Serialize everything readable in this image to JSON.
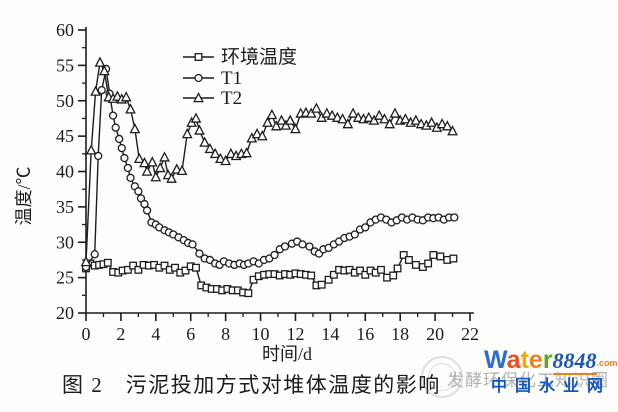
{
  "figure": {
    "caption": "图 2　污泥投加方式对堆体温度的影响"
  },
  "watermarks": {
    "faint_text": "发酵环保化工知识圈",
    "faint_text_color": "#808080",
    "logo_word_letters": [
      {
        "ch": "W",
        "color": "#2b6bd3"
      },
      {
        "ch": "a",
        "color": "#e94e1b"
      },
      {
        "ch": "t",
        "color": "#f5a800"
      },
      {
        "ch": "e",
        "color": "#e8821a"
      },
      {
        "ch": "r",
        "color": "#5fa822"
      }
    ],
    "logo_number": "8848",
    "logo_number_color": "#1f55b0",
    "logo_domain_suffix": ".com",
    "logo_domain_suffix_color": "#e8821a",
    "site_name": "中国水业网",
    "site_name_color": "#1456c0"
  },
  "chart_data": {
    "type": "line",
    "title": "",
    "xlabel": "时间/d",
    "ylabel": "温度/℃",
    "xlim": [
      0,
      22
    ],
    "ylim": [
      20,
      60
    ],
    "x_major_ticks": [
      0,
      2,
      4,
      6,
      8,
      10,
      12,
      14,
      16,
      18,
      20,
      22
    ],
    "x_minor_step": 1,
    "y_major_ticks": [
      20,
      25,
      30,
      35,
      40,
      45,
      50,
      55,
      60
    ],
    "y_minor_step": 2.5,
    "grid": false,
    "legend_position": "inside-upper-left",
    "line_color": "#1d1d1d",
    "series": [
      {
        "name": "环境温度",
        "marker": "square",
        "points": [
          [
            0,
            26.3
          ],
          [
            0.25,
            27.0
          ],
          [
            0.5,
            26.7
          ],
          [
            0.75,
            26.8
          ],
          [
            1.0,
            26.9
          ],
          [
            1.25,
            27.1
          ],
          [
            1.55,
            25.8
          ],
          [
            1.85,
            25.7
          ],
          [
            2.1,
            26.0
          ],
          [
            2.4,
            26.1
          ],
          [
            2.7,
            26.7
          ],
          [
            3.0,
            26.1
          ],
          [
            3.3,
            26.8
          ],
          [
            3.6,
            26.7
          ],
          [
            3.9,
            26.8
          ],
          [
            4.2,
            26.4
          ],
          [
            4.5,
            26.7
          ],
          [
            4.8,
            26.1
          ],
          [
            5.1,
            26.4
          ],
          [
            5.4,
            25.7
          ],
          [
            5.7,
            26.0
          ],
          [
            6.0,
            26.6
          ],
          [
            6.3,
            26.4
          ],
          [
            6.6,
            23.9
          ],
          [
            6.9,
            23.6
          ],
          [
            7.2,
            23.4
          ],
          [
            7.5,
            23.4
          ],
          [
            7.8,
            23.2
          ],
          [
            8.1,
            23.4
          ],
          [
            8.4,
            23.2
          ],
          [
            8.7,
            23.2
          ],
          [
            9.0,
            22.9
          ],
          [
            9.3,
            22.8
          ],
          [
            9.6,
            24.7
          ],
          [
            9.9,
            25.2
          ],
          [
            10.2,
            25.4
          ],
          [
            10.5,
            25.5
          ],
          [
            10.8,
            25.5
          ],
          [
            11.1,
            25.3
          ],
          [
            11.4,
            25.5
          ],
          [
            11.7,
            25.4
          ],
          [
            12.0,
            25.6
          ],
          [
            12.3,
            25.5
          ],
          [
            12.6,
            25.4
          ],
          [
            12.9,
            25.3
          ],
          [
            13.2,
            23.9
          ],
          [
            13.5,
            24.0
          ],
          [
            13.9,
            24.7
          ],
          [
            14.2,
            25.4
          ],
          [
            14.5,
            26.1
          ],
          [
            14.8,
            26.0
          ],
          [
            15.1,
            26.1
          ],
          [
            15.4,
            25.7
          ],
          [
            15.7,
            26.0
          ],
          [
            16.0,
            25.4
          ],
          [
            16.3,
            26.0
          ],
          [
            16.6,
            25.7
          ],
          [
            16.9,
            26.1
          ],
          [
            17.25,
            25.0
          ],
          [
            17.6,
            25.3
          ],
          [
            17.85,
            26.3
          ],
          [
            18.2,
            28.2
          ],
          [
            18.5,
            27.5
          ],
          [
            18.9,
            26.8
          ],
          [
            19.3,
            26.5
          ],
          [
            19.6,
            27.0
          ],
          [
            19.9,
            28.2
          ],
          [
            20.3,
            28.0
          ],
          [
            20.7,
            27.5
          ],
          [
            21.05,
            27.7
          ]
        ]
      },
      {
        "name": "T1",
        "marker": "circle",
        "points": [
          [
            0,
            26.5
          ],
          [
            0.5,
            28.3
          ],
          [
            0.7,
            42.2
          ],
          [
            0.9,
            51.5
          ],
          [
            1.15,
            54.5
          ],
          [
            1.35,
            51.0
          ],
          [
            1.55,
            47.9
          ],
          [
            1.7,
            46.2
          ],
          [
            1.9,
            44.6
          ],
          [
            2.05,
            43.3
          ],
          [
            2.2,
            41.9
          ],
          [
            2.4,
            40.5
          ],
          [
            2.55,
            39.1
          ],
          [
            2.8,
            37.9
          ],
          [
            3.0,
            37.2
          ],
          [
            3.15,
            36.2
          ],
          [
            3.35,
            35.4
          ],
          [
            3.5,
            34.5
          ],
          [
            3.75,
            32.8
          ],
          [
            4.0,
            32.5
          ],
          [
            4.2,
            32.1
          ],
          [
            4.5,
            31.7
          ],
          [
            4.75,
            31.4
          ],
          [
            5.0,
            31.1
          ],
          [
            5.3,
            30.7
          ],
          [
            5.6,
            30.3
          ],
          [
            5.85,
            29.9
          ],
          [
            6.1,
            29.7
          ],
          [
            6.5,
            28.4
          ],
          [
            6.8,
            27.7
          ],
          [
            7.1,
            27.5
          ],
          [
            7.4,
            27.0
          ],
          [
            7.65,
            26.8
          ],
          [
            7.9,
            27.3
          ],
          [
            8.2,
            27.0
          ],
          [
            8.5,
            26.8
          ],
          [
            8.8,
            27.0
          ],
          [
            9.05,
            26.8
          ],
          [
            9.3,
            27.0
          ],
          [
            9.6,
            27.3
          ],
          [
            9.9,
            27.0
          ],
          [
            10.2,
            27.5
          ],
          [
            10.5,
            27.7
          ],
          [
            10.8,
            28.2
          ],
          [
            11.1,
            29.0
          ],
          [
            11.4,
            29.4
          ],
          [
            11.8,
            29.8
          ],
          [
            12.1,
            30.1
          ],
          [
            12.4,
            29.7
          ],
          [
            12.8,
            29.4
          ],
          [
            13.1,
            28.7
          ],
          [
            13.35,
            28.4
          ],
          [
            13.6,
            29.0
          ],
          [
            13.9,
            29.2
          ],
          [
            14.2,
            29.7
          ],
          [
            14.5,
            30.1
          ],
          [
            14.8,
            30.6
          ],
          [
            15.1,
            30.8
          ],
          [
            15.4,
            31.1
          ],
          [
            15.7,
            31.8
          ],
          [
            16.0,
            32.1
          ],
          [
            16.3,
            32.8
          ],
          [
            16.6,
            33.2
          ],
          [
            16.9,
            33.5
          ],
          [
            17.2,
            33.2
          ],
          [
            17.5,
            32.8
          ],
          [
            17.8,
            33.1
          ],
          [
            18.1,
            33.5
          ],
          [
            18.4,
            33.2
          ],
          [
            18.7,
            33.5
          ],
          [
            19.0,
            33.2
          ],
          [
            19.3,
            33.1
          ],
          [
            19.6,
            33.5
          ],
          [
            19.9,
            33.4
          ],
          [
            20.2,
            33.5
          ],
          [
            20.5,
            33.2
          ],
          [
            20.8,
            33.5
          ],
          [
            21.1,
            33.5
          ]
        ]
      },
      {
        "name": "T2",
        "marker": "triangle",
        "points": [
          [
            0,
            27.2
          ],
          [
            0.3,
            43.0
          ],
          [
            0.55,
            51.3
          ],
          [
            0.8,
            55.4
          ],
          [
            1.05,
            54.2
          ],
          [
            1.3,
            50.5
          ],
          [
            1.55,
            50.3
          ],
          [
            1.8,
            50.6
          ],
          [
            2.05,
            50.2
          ],
          [
            2.3,
            50.5
          ],
          [
            2.55,
            48.8
          ],
          [
            2.8,
            46.0
          ],
          [
            3.05,
            41.8
          ],
          [
            3.35,
            41.2
          ],
          [
            3.5,
            40.0
          ],
          [
            3.8,
            41.3
          ],
          [
            4.0,
            39.2
          ],
          [
            4.25,
            40.5
          ],
          [
            4.5,
            42.0
          ],
          [
            4.7,
            39.5
          ],
          [
            4.9,
            39.0
          ],
          [
            5.2,
            40.3
          ],
          [
            5.5,
            40.1
          ],
          [
            5.8,
            45.3
          ],
          [
            6.05,
            46.9
          ],
          [
            6.3,
            47.5
          ],
          [
            6.5,
            45.8
          ],
          [
            6.8,
            44.1
          ],
          [
            7.1,
            43.2
          ],
          [
            7.4,
            42.5
          ],
          [
            7.7,
            41.8
          ],
          [
            8.0,
            41.5
          ],
          [
            8.3,
            42.5
          ],
          [
            8.6,
            42.2
          ],
          [
            8.9,
            42.5
          ],
          [
            9.2,
            42.6
          ],
          [
            9.5,
            44.7
          ],
          [
            9.8,
            45.3
          ],
          [
            10.1,
            45.0
          ],
          [
            10.4,
            46.9
          ],
          [
            10.65,
            48.0
          ],
          [
            10.9,
            46.4
          ],
          [
            11.2,
            47.2
          ],
          [
            11.45,
            46.5
          ],
          [
            11.7,
            47.2
          ],
          [
            12.0,
            46.0
          ],
          [
            12.3,
            48.2
          ],
          [
            12.6,
            48.3
          ],
          [
            12.9,
            48.2
          ],
          [
            13.2,
            48.9
          ],
          [
            13.5,
            47.6
          ],
          [
            13.8,
            48.2
          ],
          [
            14.1,
            47.9
          ],
          [
            14.4,
            47.6
          ],
          [
            14.7,
            47.4
          ],
          [
            15.0,
            46.7
          ],
          [
            15.3,
            48.2
          ],
          [
            15.6,
            47.6
          ],
          [
            15.9,
            47.4
          ],
          [
            16.2,
            47.6
          ],
          [
            16.5,
            47.2
          ],
          [
            16.8,
            47.9
          ],
          [
            17.1,
            47.4
          ],
          [
            17.4,
            46.7
          ],
          [
            17.7,
            48.2
          ],
          [
            18.0,
            47.2
          ],
          [
            18.3,
            47.4
          ],
          [
            18.6,
            46.9
          ],
          [
            18.9,
            47.2
          ],
          [
            19.2,
            46.7
          ],
          [
            19.5,
            46.5
          ],
          [
            19.8,
            46.9
          ],
          [
            20.1,
            46.2
          ],
          [
            20.4,
            46.7
          ],
          [
            20.7,
            46.4
          ],
          [
            21.0,
            45.7
          ]
        ]
      }
    ]
  }
}
